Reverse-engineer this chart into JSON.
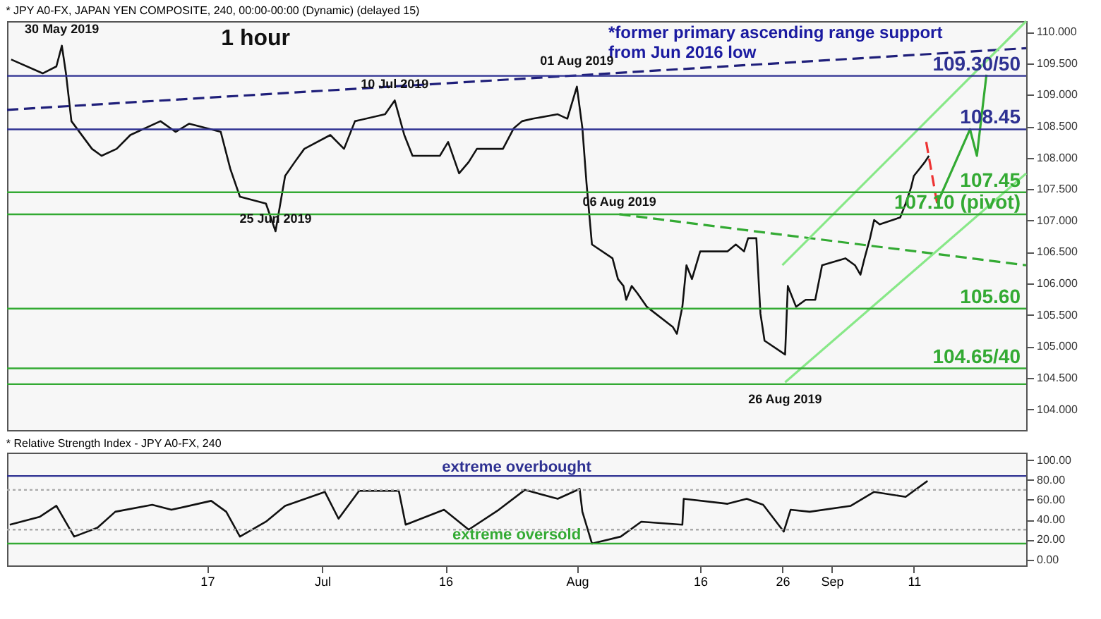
{
  "chart_data": [
    {
      "type": "line",
      "title": "* JPY A0-FX, JAPAN YEN COMPOSITE, 240, 00:00-00:00 (Dynamic) (delayed 15)",
      "xlim": [
        "2019-05-23T16:00",
        "2019-09-24T16:00"
      ],
      "ylim": [
        103.67,
        110.17
      ],
      "yticks": [
        {
          "value": 104,
          "label": "104.000"
        },
        {
          "value": 104.5,
          "label": "104.500"
        },
        {
          "value": 105,
          "label": "105.000"
        },
        {
          "value": 105.5,
          "label": "105.500"
        },
        {
          "value": 106,
          "label": "106.000"
        },
        {
          "value": 106.5,
          "label": "106.500"
        },
        {
          "value": 107,
          "label": "107.000"
        },
        {
          "value": 107.5,
          "label": "107.500"
        },
        {
          "value": 108,
          "label": "108.000"
        },
        {
          "value": 108.5,
          "label": "108.500"
        },
        {
          "value": 109,
          "label": "109.000"
        },
        {
          "value": 109.5,
          "label": "109.500"
        },
        {
          "value": 110,
          "label": "110.000"
        }
      ],
      "tick_labels": "y",
      "grid": false,
      "marker": "none",
      "series": [
        {
          "color": "#111111",
          "line_style": "solid",
          "x": [
            "2019-05-24T04:00",
            "2019-05-28T00:00",
            "2019-05-29T16:00",
            "2019-05-30T08:00",
            "2019-05-30T20:00",
            "2019-05-31T12:00",
            "2019-06-03T00:00",
            "2019-06-04T04:00",
            "2019-06-06T00:00",
            "2019-06-07T16:00",
            "2019-06-11T08:00",
            "2019-06-13T04:00",
            "2019-06-14T20:00",
            "2019-06-18T16:00",
            "2019-06-19T20:00",
            "2019-06-21T00:00",
            "2019-06-24T04:00",
            "2019-06-25T08:00",
            "2019-06-26T12:00",
            "2019-06-27T16:00",
            "2019-06-28T20:00",
            "2019-07-02T00:00",
            "2019-07-03T16:00",
            "2019-07-05T00:00",
            "2019-07-08T16:00",
            "2019-07-09T20:00",
            "2019-07-11T00:00",
            "2019-07-12T00:00",
            "2019-07-15T08:00",
            "2019-07-16T08:00",
            "2019-07-17T16:00",
            "2019-07-18T20:00",
            "2019-07-19T20:00",
            "2019-07-23T00:00",
            "2019-07-24T08:00",
            "2019-07-25T08:00",
            "2019-07-26T16:00",
            "2019-07-29T16:00",
            "2019-07-30T20:00",
            "2019-08-01T00:00",
            "2019-08-01T16:00",
            "2019-08-02T04:00",
            "2019-08-02T20:00",
            "2019-08-05T08:00",
            "2019-08-06T00:00",
            "2019-08-06T16:00",
            "2019-08-07T00:00",
            "2019-08-07T16:00",
            "2019-08-08T08:00",
            "2019-08-09T12:00",
            "2019-08-12T16:00",
            "2019-08-13T04:00",
            "2019-08-13T20:00",
            "2019-08-14T08:00",
            "2019-08-15T00:00",
            "2019-08-16T00:00",
            "2019-08-19T08:00",
            "2019-08-20T08:00",
            "2019-08-21T08:00",
            "2019-08-21T20:00",
            "2019-08-22T20:00",
            "2019-08-23T08:00",
            "2019-08-23T20:00",
            "2019-08-26T08:00",
            "2019-08-26T16:00",
            "2019-08-27T16:00",
            "2019-08-28T20:00",
            "2019-08-30T00:00",
            "2019-08-30T20:00",
            "2019-09-02T16:00",
            "2019-09-03T20:00",
            "2019-09-04T12:00",
            "2019-09-05T00:00",
            "2019-09-05T16:00",
            "2019-09-06T04:00",
            "2019-09-06T20:00",
            "2019-09-09T08:00",
            "2019-09-10T00:00",
            "2019-09-10T16:00",
            "2019-09-11T00:00",
            "2019-09-11T16:00",
            "2019-09-12T08:00",
            "2019-09-12T20:00"
          ],
          "values": [
            109.56,
            109.34,
            109.45,
            109.78,
            109.34,
            108.58,
            108.14,
            108.03,
            108.14,
            108.36,
            108.58,
            108.41,
            108.54,
            108.41,
            107.82,
            107.38,
            107.27,
            106.83,
            107.71,
            107.93,
            108.14,
            108.36,
            108.14,
            108.58,
            108.69,
            108.91,
            108.36,
            108.03,
            108.03,
            108.25,
            107.75,
            107.93,
            108.14,
            108.14,
            108.47,
            108.58,
            108.62,
            108.69,
            108.62,
            109.13,
            108.47,
            107.6,
            106.62,
            106.4,
            106.07,
            105.96,
            105.74,
            105.96,
            105.85,
            105.63,
            105.31,
            105.2,
            105.63,
            106.29,
            106.07,
            106.51,
            106.51,
            106.62,
            106.51,
            106.72,
            106.72,
            105.52,
            105.09,
            104.87,
            105.96,
            105.63,
            105.74,
            105.74,
            106.29,
            106.4,
            106.29,
            106.14,
            106.4,
            106.72,
            107.01,
            106.94,
            107.05,
            107.27,
            107.53,
            107.71,
            107.82,
            107.93,
            108.03
          ]
        },
        {
          "color": "#1f1f7a",
          "line_style": "dashed",
          "x": [
            "2019-05-23T16:00",
            "2019-09-24T16:00"
          ],
          "values": [
            108.76,
            109.74
          ]
        },
        {
          "color": "#33aa33",
          "line_style": "dashed",
          "x": [
            "2019-08-06T04:00",
            "2019-09-24T16:00"
          ],
          "values": [
            107.1,
            106.29
          ]
        },
        {
          "color": "#88e888",
          "line_style": "solid",
          "x": [
            "2019-08-26T08:00",
            "2019-09-24T16:00"
          ],
          "values": [
            104.43,
            107.75
          ]
        },
        {
          "color": "#88e888",
          "line_style": "solid",
          "x": [
            "2019-08-26T00:00",
            "2019-09-24T16:00"
          ],
          "values": [
            106.29,
            110.17
          ]
        },
        {
          "color": "#ee3333",
          "line_style": "dashed",
          "x": [
            "2019-09-12T12:00",
            "2019-09-13T20:00"
          ],
          "values": [
            108.25,
            107.27
          ]
        },
        {
          "color": "#33aa33",
          "line_style": "solid",
          "x": [
            "2019-09-13T20:00",
            "2019-09-17T20:00",
            "2019-09-18T16:00",
            "2019-09-19T20:00"
          ],
          "values": [
            107.27,
            108.45,
            108.03,
            109.32
          ]
        }
      ],
      "ref_lines": [
        {
          "axis": "y",
          "value": 109.3,
          "label": "109.30/50",
          "color": "#2e3192"
        },
        {
          "axis": "y",
          "value": 108.45,
          "label": "108.45",
          "color": "#2e3192"
        },
        {
          "axis": "y",
          "value": 107.45,
          "label": "107.45",
          "color": "#33aa33"
        },
        {
          "axis": "y",
          "value": 107.1,
          "label": "107.10 (pivot)",
          "color": "#33aa33"
        },
        {
          "axis": "y",
          "value": 105.6,
          "label": "105.60",
          "color": "#33aa33"
        },
        {
          "axis": "y",
          "value": 104.65,
          "label": "104.65/40",
          "color": "#33aa33"
        },
        {
          "axis": "y",
          "value": 104.4,
          "color": "#33aa33"
        }
      ],
      "annotations": [
        "1 hour",
        "*former primary ascending range support\nfrom Jun 2016 low",
        {
          "text": "30 May 2019",
          "x": "2019-05-30T08:00",
          "y": 109.85
        },
        {
          "text": "25 Jun 2019",
          "x": "2019-06-25T08:00",
          "y": 106.83
        },
        {
          "text": "10 Jul 2019",
          "x": "2019-07-09T20:00",
          "y": 108.97
        },
        {
          "text": "01 Aug 2019",
          "x": "2019-08-01T00:00",
          "y": 109.34
        },
        {
          "text": "06 Aug 2019",
          "x": "2019-08-06T04:00",
          "y": 107.1
        },
        {
          "text": "26 Aug 2019",
          "x": "2019-08-26T08:00",
          "y": 104.43
        }
      ]
    },
    {
      "type": "line",
      "title": "* Relative Strength Index - JPY A0-FX, 240",
      "xlim": [
        "2019-05-23T16:00",
        "2019-09-24T16:00"
      ],
      "ylim": [
        -6,
        107.5
      ],
      "xticks": [
        {
          "value": "2019-06-17",
          "label": "17"
        },
        {
          "value": "2019-07-01",
          "label": "Jul"
        },
        {
          "value": "2019-07-16",
          "label": "16"
        },
        {
          "value": "2019-08-01",
          "label": "Aug"
        },
        {
          "value": "2019-08-16",
          "label": "16"
        },
        {
          "value": "2019-08-26",
          "label": "26"
        },
        {
          "value": "2019-09-01",
          "label": "Sep"
        },
        {
          "value": "2019-09-11",
          "label": "11"
        }
      ],
      "yticks": [
        {
          "value": 0,
          "label": "0.00"
        },
        {
          "value": 20,
          "label": "20.00"
        },
        {
          "value": 40,
          "label": "40.00"
        },
        {
          "value": 60,
          "label": "60.00"
        },
        {
          "value": 80,
          "label": "80.00"
        },
        {
          "value": 100,
          "label": "100.00"
        }
      ],
      "grid": false,
      "marker": "none",
      "series": [
        {
          "color": "#111111",
          "line_style": "solid",
          "x": [
            "2019-05-24T00:00",
            "2019-05-27T16:00",
            "2019-05-29T16:00",
            "2019-05-31T20:00",
            "2019-06-03T16:00",
            "2019-06-05T20:00",
            "2019-06-10T08:00",
            "2019-06-12T16:00",
            "2019-06-17T12:00",
            "2019-06-19T08:00",
            "2019-06-21T00:00",
            "2019-06-24T04:00",
            "2019-06-26T12:00",
            "2019-07-01T08:00",
            "2019-07-03T00:00",
            "2019-07-05T12:00",
            "2019-07-10T08:00",
            "2019-07-11T04:00",
            "2019-07-15T20:00",
            "2019-07-18T20:00",
            "2019-07-22T12:00",
            "2019-07-25T16:00",
            "2019-07-29T16:00",
            "2019-08-01T08:00",
            "2019-08-01T16:00",
            "2019-08-02T20:00",
            "2019-08-06T08:00",
            "2019-08-08T20:00",
            "2019-08-13T20:00",
            "2019-08-14T00:00",
            "2019-08-19T08:00",
            "2019-08-21T16:00",
            "2019-08-23T16:00",
            "2019-08-26T04:00",
            "2019-08-27T00:00",
            "2019-08-29T08:00",
            "2019-09-03T08:00",
            "2019-09-06T04:00",
            "2019-09-10T00:00",
            "2019-09-12T16:00"
          ],
          "values": [
            35,
            43,
            54,
            23,
            32,
            48,
            55,
            50,
            59,
            48,
            23,
            38,
            54,
            68,
            41,
            69,
            69,
            35,
            50,
            30,
            50,
            70,
            61,
            71,
            48,
            16,
            23,
            38,
            35,
            61,
            56,
            61,
            55,
            28,
            50,
            48,
            54,
            68,
            63,
            79
          ]
        }
      ],
      "ref_lines": [
        {
          "axis": "y",
          "value": 84,
          "label": "extreme overbought",
          "color": "#2e3192"
        },
        {
          "axis": "y",
          "value": 70,
          "color": "#aaaaaa",
          "line_style": "dotted"
        },
        {
          "axis": "y",
          "value": 30,
          "color": "#aaaaaa",
          "line_style": "dotted"
        },
        {
          "axis": "y",
          "value": 16,
          "label": "extreme oversold",
          "color": "#33aa33"
        }
      ]
    }
  ]
}
